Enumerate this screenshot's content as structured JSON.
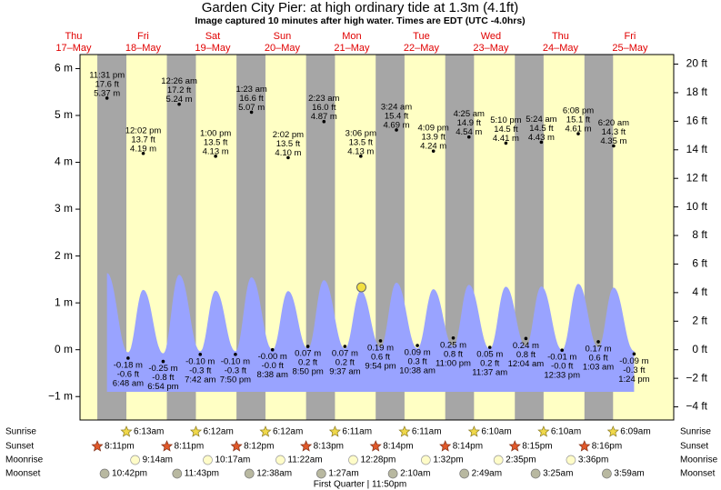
{
  "chart_data": {
    "type": "tide",
    "title": "Garden City Pier: at high  ordinary tide at 1.3m (4.1ft)",
    "subtitle": "Image captured 10 minutes after high water. Times are EDT (UTC -4.0hrs)",
    "ylim": [
      -1.5,
      6.3
    ],
    "yticks": [
      {
        "value": -1,
        "label": "−1 m"
      },
      {
        "value": 0,
        "label": "0 m"
      },
      {
        "value": 1,
        "label": "1 m"
      },
      {
        "value": 2,
        "label": "2 m"
      },
      {
        "value": 3,
        "label": "3 m"
      },
      {
        "value": 4,
        "label": "4 m"
      },
      {
        "value": 5,
        "label": "5 m"
      },
      {
        "value": 6,
        "label": "6 m"
      }
    ],
    "y2lim": [
      -4.92,
      20.67
    ],
    "y2ticks": [
      {
        "value": -4,
        "label": "−4 ft"
      },
      {
        "value": -2,
        "label": "−2 ft"
      },
      {
        "value": 0,
        "label": "0 ft"
      },
      {
        "value": 2,
        "label": "2 ft"
      },
      {
        "value": 4,
        "label": "4 ft"
      },
      {
        "value": 6,
        "label": "6 ft"
      },
      {
        "value": 8,
        "label": "8 ft"
      },
      {
        "value": 10,
        "label": "10 ft"
      },
      {
        "value": 12,
        "label": "12 ft"
      },
      {
        "value": 14,
        "label": "14 ft"
      },
      {
        "value": 16,
        "label": "16 ft"
      },
      {
        "value": 18,
        "label": "18 ft"
      },
      {
        "value": 20,
        "label": "20 ft"
      }
    ],
    "row_labels": {
      "sunrise": "Sunrise",
      "sunset": "Sunset",
      "moonrise": "Moonrise",
      "moonset": "Moonset"
    },
    "moon_phase": "First Quarter | 11:50pm",
    "days": [
      {
        "weekday": "Thu",
        "date": "17–May",
        "sunset": "8:11pm",
        "moonset": "10:42pm",
        "tides": [
          {
            "time": "11:31 pm",
            "value": 5.37,
            "value_label": "5.37 m",
            "ft": "17.6 ft"
          }
        ]
      },
      {
        "weekday": "Fri",
        "date": "18–May",
        "sunrise": "6:13am",
        "sunset": "8:11pm",
        "moonrise": "9:14am",
        "moonset": "11:43pm",
        "tides": [
          {
            "time": "6:48 am",
            "value": -0.18,
            "value_label": "-0.18 m",
            "ft": "-0.6 ft"
          },
          {
            "time": "12:02 pm",
            "value": 4.19,
            "value_label": "4.19 m",
            "ft": "13.7 ft"
          },
          {
            "time": "6:54 pm",
            "value": -0.25,
            "value_label": "-0.25 m",
            "ft": "-0.8 ft"
          }
        ]
      },
      {
        "weekday": "Sat",
        "date": "19–May",
        "sunrise": "6:12am",
        "sunset": "8:12pm",
        "moonrise": "10:17am",
        "tides": [
          {
            "time": "12:26 am",
            "value": 5.24,
            "value_label": "5.24 m",
            "ft": "17.2 ft"
          },
          {
            "time": "7:42 am",
            "value": -0.1,
            "value_label": "-0.10 m",
            "ft": "-0.3 ft"
          },
          {
            "time": "1:00 pm",
            "value": 4.13,
            "value_label": "4.13 m",
            "ft": "13.5 ft"
          },
          {
            "time": "7:50 pm",
            "value": -0.1,
            "value_label": "-0.10 m",
            "ft": "-0.3 ft"
          }
        ]
      },
      {
        "weekday": "Sun",
        "date": "20–May",
        "sunrise": "6:12am",
        "sunset": "8:13pm",
        "moonrise": "11:22am",
        "moonset": "12:38am",
        "tides": [
          {
            "time": "1:23 am",
            "value": 5.07,
            "value_label": "5.07 m",
            "ft": "16.6 ft"
          },
          {
            "time": "8:38 am",
            "value": 0,
            "value_label": "-0.00 m",
            "ft": "-0.0 ft"
          },
          {
            "time": "2:02 pm",
            "value": 4.1,
            "value_label": "4.10 m",
            "ft": "13.5 ft"
          },
          {
            "time": "8:50 pm",
            "value": 0.07,
            "value_label": "0.07 m",
            "ft": "0.2 ft"
          }
        ]
      },
      {
        "weekday": "Mon",
        "date": "21–May",
        "sunrise": "6:11am",
        "sunset": "8:14pm",
        "moonrise": "12:28pm",
        "moonset": "1:27am",
        "tides": [
          {
            "time": "2:23 am",
            "value": 4.87,
            "value_label": "4.87 m",
            "ft": "16.0 ft"
          },
          {
            "time": "9:37 am",
            "value": 0.07,
            "value_label": "0.07 m",
            "ft": "0.2 ft"
          },
          {
            "time": "3:06 pm",
            "value": 4.13,
            "value_label": "4.13 m",
            "ft": "13.5 ft"
          },
          {
            "time": "9:54 pm",
            "value": 0.19,
            "value_label": "0.19 m",
            "ft": "0.6 ft"
          }
        ]
      },
      {
        "weekday": "Tue",
        "date": "22–May",
        "sunrise": "6:11am",
        "sunset": "8:14pm",
        "moonrise": "1:32pm",
        "moonset": "2:10am",
        "tides": [
          {
            "time": "3:24 am",
            "value": 4.69,
            "value_label": "4.69 m",
            "ft": "15.4 ft"
          },
          {
            "time": "10:38 am",
            "value": 0.09,
            "value_label": "0.09 m",
            "ft": "0.3 ft"
          },
          {
            "time": "4:09 pm",
            "value": 4.24,
            "value_label": "4.24 m",
            "ft": "13.9 ft"
          },
          {
            "time": "11:00 pm",
            "value": 0.25,
            "value_label": "0.25 m",
            "ft": "0.8 ft"
          }
        ]
      },
      {
        "weekday": "Wed",
        "date": "23–May",
        "sunrise": "6:10am",
        "sunset": "8:15pm",
        "moonrise": "2:35pm",
        "moonset": "2:49am",
        "tides": [
          {
            "time": "4:25 am",
            "value": 4.54,
            "value_label": "4.54 m",
            "ft": "14.9 ft"
          },
          {
            "time": "11:37 am",
            "value": 0.05,
            "value_label": "0.05 m",
            "ft": "0.2 ft"
          },
          {
            "time": "5:10 pm",
            "value": 4.41,
            "value_label": "4.41 m",
            "ft": "14.5 ft"
          }
        ]
      },
      {
        "weekday": "Thu",
        "date": "24–May",
        "sunrise": "6:10am",
        "sunset": "8:16pm",
        "moonrise": "3:36pm",
        "moonset": "3:25am",
        "tides": [
          {
            "time": "12:04 am",
            "value": 0.24,
            "value_label": "0.24 m",
            "ft": "0.8 ft"
          },
          {
            "time": "5:24 am",
            "value": 4.43,
            "value_label": "4.43 m",
            "ft": "14.5 ft"
          },
          {
            "time": "12:33 pm",
            "value": -0.01,
            "value_label": "-0.01 m",
            "ft": "-0.0 ft"
          },
          {
            "time": "6:08 pm",
            "value": 4.61,
            "value_label": "4.61 m",
            "ft": "15.1 ft"
          }
        ]
      },
      {
        "weekday": "Fri",
        "date": "25–May",
        "sunrise": "6:09am",
        "moonset": "3:59am",
        "tides": [
          {
            "time": "1:03 am",
            "value": 0.17,
            "value_label": "0.17 m",
            "ft": "0.6 ft"
          },
          {
            "time": "6:20 am",
            "value": 4.35,
            "value_label": "4.35 m",
            "ft": "14.3 ft"
          },
          {
            "time": "1:24 pm",
            "value": -0.09,
            "value_label": "-0.09 m",
            "ft": "-0.3 ft"
          }
        ]
      }
    ]
  }
}
